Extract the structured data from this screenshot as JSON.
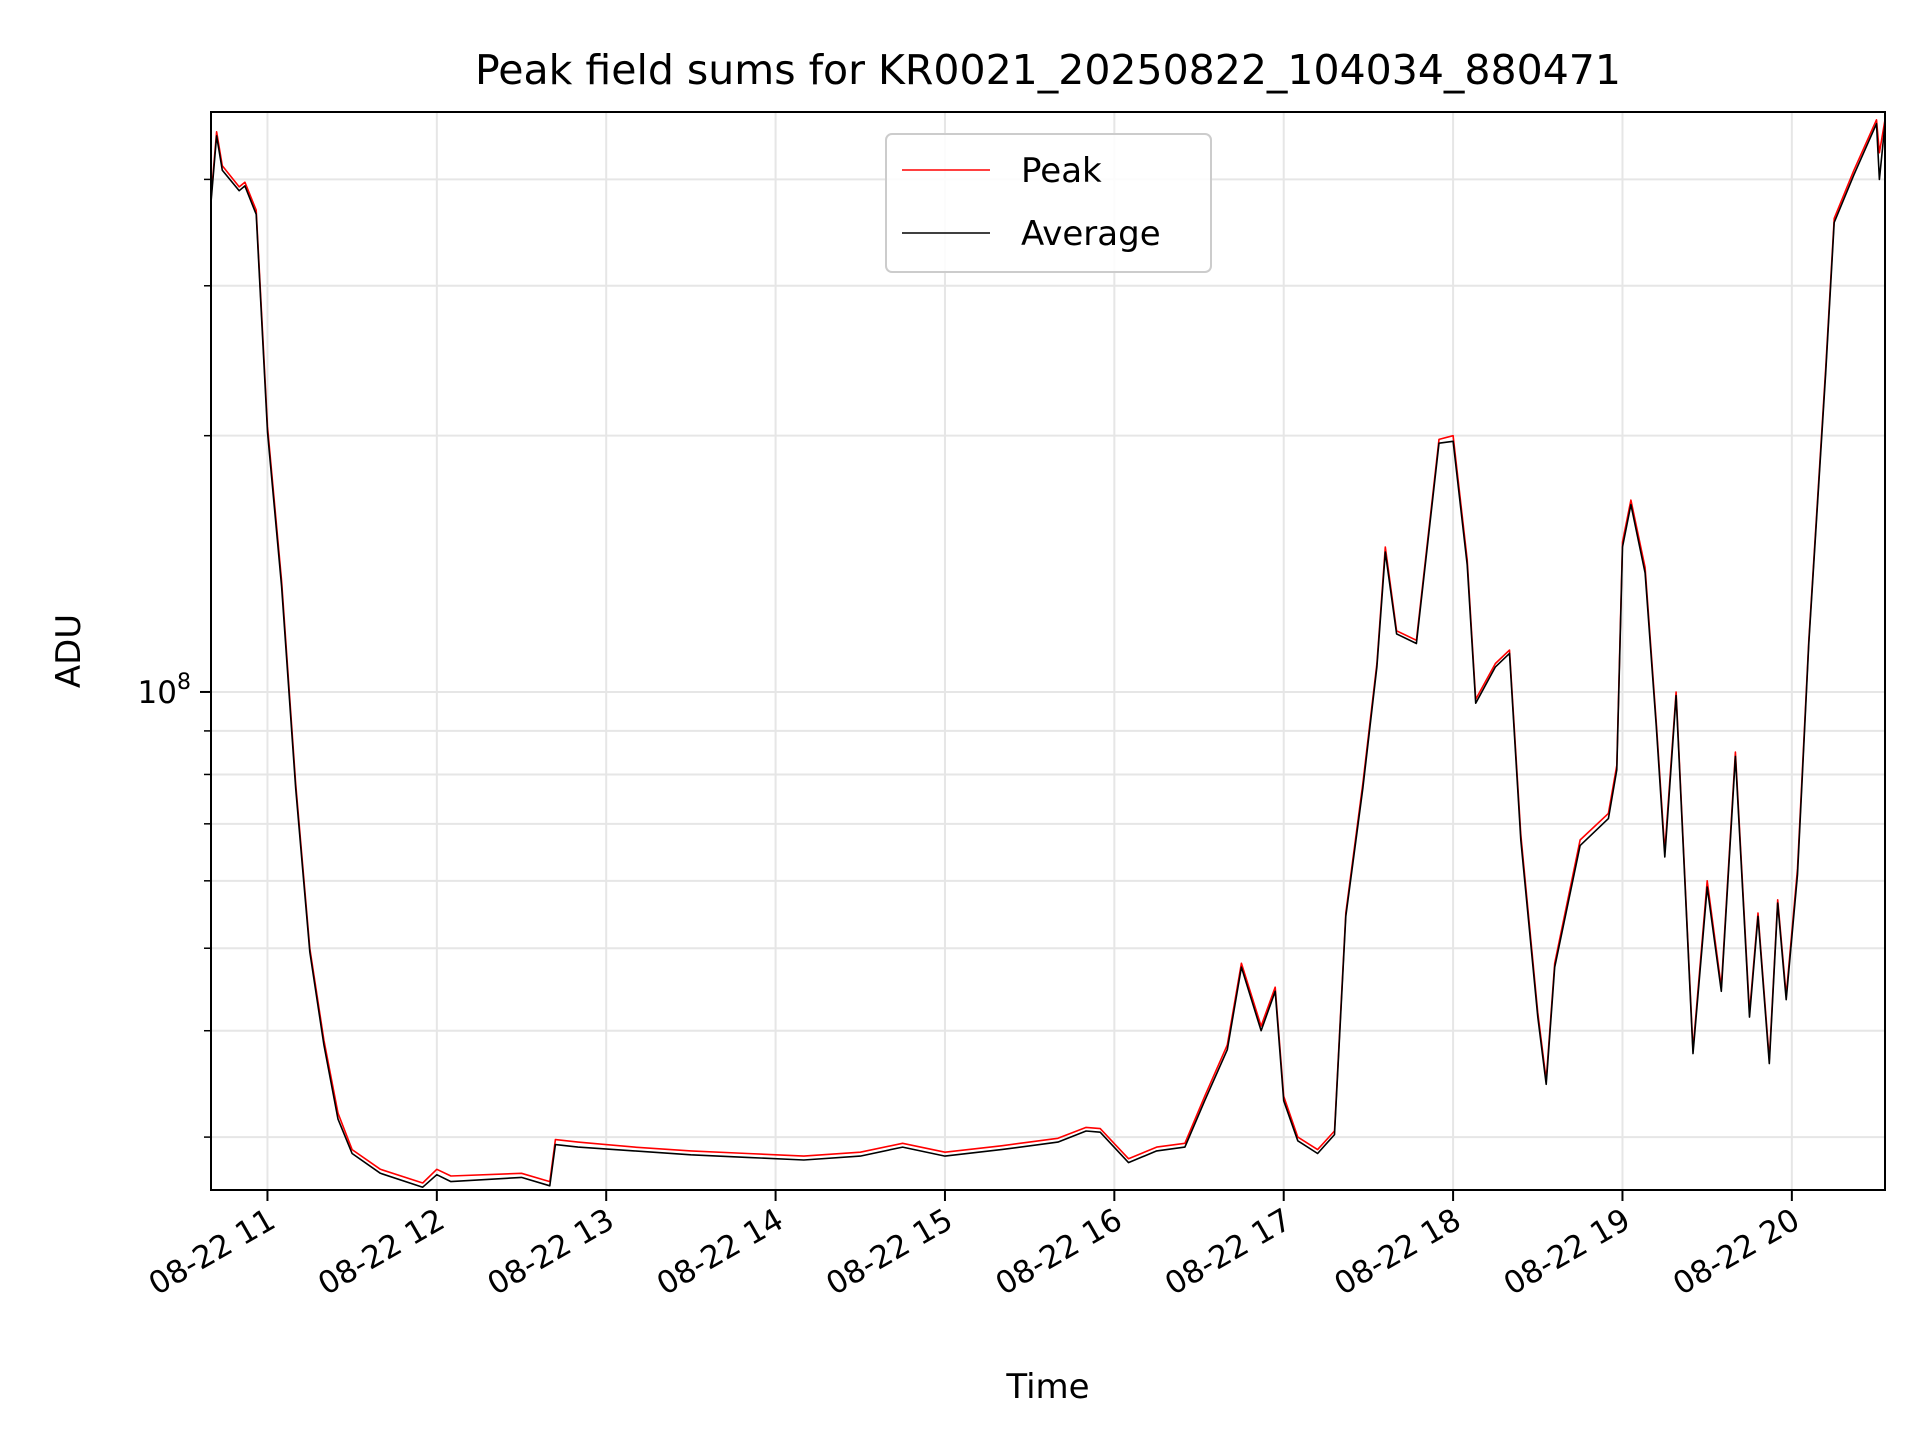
{
  "chart_data": {
    "type": "line",
    "title": "Peak field sums for KR0021_20250822_104034_880471",
    "xlabel": "Time",
    "ylabel": "ADU",
    "x_axis": {
      "kind": "datetime",
      "range": [
        "2025-08-22 10:40",
        "2025-08-22 20:33"
      ],
      "ticks": [
        {
          "value": "2025-08-22 11:00",
          "label": "08-22 11"
        },
        {
          "value": "2025-08-22 12:00",
          "label": "08-22 12"
        },
        {
          "value": "2025-08-22 13:00",
          "label": "08-22 13"
        },
        {
          "value": "2025-08-22 14:00",
          "label": "08-22 14"
        },
        {
          "value": "2025-08-22 15:00",
          "label": "08-22 15"
        },
        {
          "value": "2025-08-22 16:00",
          "label": "08-22 16"
        },
        {
          "value": "2025-08-22 17:00",
          "label": "08-22 17"
        },
        {
          "value": "2025-08-22 18:00",
          "label": "08-22 18"
        },
        {
          "value": "2025-08-22 19:00",
          "label": "08-22 19"
        },
        {
          "value": "2025-08-22 20:00",
          "label": "08-22 20"
        }
      ]
    },
    "y_axis": {
      "scale": "log",
      "range": [
        26000000,
        480000000
      ],
      "major_ticks": [
        {
          "value": 100000000,
          "base": "10",
          "exponent": "8"
        }
      ],
      "minor_ticks": [
        30000000,
        40000000,
        50000000,
        60000000,
        70000000,
        80000000,
        90000000,
        200000000,
        300000000,
        400000000
      ]
    },
    "grid": true,
    "legend_position": "top-center",
    "colors": {
      "Peak": "#ff0000",
      "Average": "#000000"
    },
    "series": [
      {
        "name": "Peak",
        "color": "#ff0000",
        "points": [
          [
            "2025-08-22 10:40",
            380000000
          ],
          [
            "2025-08-22 10:42",
            455000000
          ],
          [
            "2025-08-22 10:44",
            415000000
          ],
          [
            "2025-08-22 10:50",
            392000000
          ],
          [
            "2025-08-22 10:52",
            397000000
          ],
          [
            "2025-08-22 10:56",
            368000000
          ],
          [
            "2025-08-22 11:00",
            205000000
          ],
          [
            "2025-08-22 11:05",
            135000000
          ],
          [
            "2025-08-22 11:10",
            78000000
          ],
          [
            "2025-08-22 11:15",
            50000000
          ],
          [
            "2025-08-22 11:20",
            39000000
          ],
          [
            "2025-08-22 11:25",
            32000000
          ],
          [
            "2025-08-22 11:30",
            29000000
          ],
          [
            "2025-08-22 11:40",
            27500000
          ],
          [
            "2025-08-22 11:55",
            26500000
          ],
          [
            "2025-08-22 12:00",
            27500000
          ],
          [
            "2025-08-22 12:05",
            27000000
          ],
          [
            "2025-08-22 12:30",
            27200000
          ],
          [
            "2025-08-22 12:40",
            26600000
          ],
          [
            "2025-08-22 12:42",
            29800000
          ],
          [
            "2025-08-22 12:50",
            29600000
          ],
          [
            "2025-08-22 13:10",
            29200000
          ],
          [
            "2025-08-22 13:30",
            28900000
          ],
          [
            "2025-08-22 13:50",
            28700000
          ],
          [
            "2025-08-22 14:10",
            28500000
          ],
          [
            "2025-08-22 14:30",
            28800000
          ],
          [
            "2025-08-22 14:45",
            29500000
          ],
          [
            "2025-08-22 15:00",
            28800000
          ],
          [
            "2025-08-22 15:20",
            29300000
          ],
          [
            "2025-08-22 15:40",
            29900000
          ],
          [
            "2025-08-22 15:50",
            30800000
          ],
          [
            "2025-08-22 15:55",
            30700000
          ],
          [
            "2025-08-22 16:05",
            28300000
          ],
          [
            "2025-08-22 16:15",
            29200000
          ],
          [
            "2025-08-22 16:25",
            29500000
          ],
          [
            "2025-08-22 16:32",
            33500000
          ],
          [
            "2025-08-22 16:40",
            38500000
          ],
          [
            "2025-08-22 16:45",
            48000000
          ],
          [
            "2025-08-22 16:52",
            40500000
          ],
          [
            "2025-08-22 16:57",
            45000000
          ],
          [
            "2025-08-22 17:00",
            33500000
          ],
          [
            "2025-08-22 17:05",
            30000000
          ],
          [
            "2025-08-22 17:12",
            29000000
          ],
          [
            "2025-08-22 17:18",
            30500000
          ],
          [
            "2025-08-22 17:22",
            55000000
          ],
          [
            "2025-08-22 17:28",
            78000000
          ],
          [
            "2025-08-22 17:33",
            108000000
          ],
          [
            "2025-08-22 17:36",
            148000000
          ],
          [
            "2025-08-22 17:40",
            118000000
          ],
          [
            "2025-08-22 17:47",
            115000000
          ],
          [
            "2025-08-22 17:55",
            198000000
          ],
          [
            "2025-08-22 18:00",
            200000000
          ],
          [
            "2025-08-22 18:05",
            143000000
          ],
          [
            "2025-08-22 18:08",
            98000000
          ],
          [
            "2025-08-22 18:15",
            108000000
          ],
          [
            "2025-08-22 18:20",
            112000000
          ],
          [
            "2025-08-22 18:24",
            68000000
          ],
          [
            "2025-08-22 18:30",
            42000000
          ],
          [
            "2025-08-22 18:33",
            35000000
          ],
          [
            "2025-08-22 18:36",
            48000000
          ],
          [
            "2025-08-22 18:45",
            67000000
          ],
          [
            "2025-08-22 18:55",
            72000000
          ],
          [
            "2025-08-22 18:58",
            82000000
          ],
          [
            "2025-08-22 19:00",
            150000000
          ],
          [
            "2025-08-22 19:03",
            168000000
          ],
          [
            "2025-08-22 19:08",
            140000000
          ],
          [
            "2025-08-22 19:12",
            92000000
          ],
          [
            "2025-08-22 19:15",
            65000000
          ],
          [
            "2025-08-22 19:19",
            100000000
          ],
          [
            "2025-08-22 19:25",
            38000000
          ],
          [
            "2025-08-22 19:30",
            60000000
          ],
          [
            "2025-08-22 19:35",
            45000000
          ],
          [
            "2025-08-22 19:40",
            85000000
          ],
          [
            "2025-08-22 19:45",
            42000000
          ],
          [
            "2025-08-22 19:48",
            55000000
          ],
          [
            "2025-08-22 19:52",
            37000000
          ],
          [
            "2025-08-22 19:55",
            57000000
          ],
          [
            "2025-08-22 19:58",
            44000000
          ],
          [
            "2025-08-22 20:02",
            62000000
          ],
          [
            "2025-08-22 20:06",
            115000000
          ],
          [
            "2025-08-22 20:12",
            240000000
          ],
          [
            "2025-08-22 20:15",
            360000000
          ],
          [
            "2025-08-22 20:22",
            410000000
          ],
          [
            "2025-08-22 20:30",
            470000000
          ],
          [
            "2025-08-22 20:31",
            430000000
          ],
          [
            "2025-08-22 20:33",
            470000000
          ]
        ]
      },
      {
        "name": "Average",
        "color": "#000000",
        "points": [
          [
            "2025-08-22 10:40",
            376000000
          ],
          [
            "2025-08-22 10:42",
            450000000
          ],
          [
            "2025-08-22 10:44",
            410000000
          ],
          [
            "2025-08-22 10:50",
            388000000
          ],
          [
            "2025-08-22 10:52",
            393000000
          ],
          [
            "2025-08-22 10:56",
            364000000
          ],
          [
            "2025-08-22 11:00",
            202000000
          ],
          [
            "2025-08-22 11:05",
            133000000
          ],
          [
            "2025-08-22 11:10",
            77000000
          ],
          [
            "2025-08-22 11:15",
            49500000
          ],
          [
            "2025-08-22 11:20",
            38500000
          ],
          [
            "2025-08-22 11:25",
            31500000
          ],
          [
            "2025-08-22 11:30",
            28700000
          ],
          [
            "2025-08-22 11:40",
            27200000
          ],
          [
            "2025-08-22 11:55",
            26200000
          ],
          [
            "2025-08-22 12:00",
            27100000
          ],
          [
            "2025-08-22 12:05",
            26600000
          ],
          [
            "2025-08-22 12:30",
            26900000
          ],
          [
            "2025-08-22 12:40",
            26300000
          ],
          [
            "2025-08-22 12:42",
            29400000
          ],
          [
            "2025-08-22 12:50",
            29200000
          ],
          [
            "2025-08-22 13:10",
            28900000
          ],
          [
            "2025-08-22 13:30",
            28600000
          ],
          [
            "2025-08-22 13:50",
            28400000
          ],
          [
            "2025-08-22 14:10",
            28200000
          ],
          [
            "2025-08-22 14:30",
            28500000
          ],
          [
            "2025-08-22 14:45",
            29200000
          ],
          [
            "2025-08-22 15:00",
            28500000
          ],
          [
            "2025-08-22 15:20",
            29000000
          ],
          [
            "2025-08-22 15:40",
            29600000
          ],
          [
            "2025-08-22 15:50",
            30500000
          ],
          [
            "2025-08-22 15:55",
            30400000
          ],
          [
            "2025-08-22 16:05",
            28000000
          ],
          [
            "2025-08-22 16:15",
            28900000
          ],
          [
            "2025-08-22 16:25",
            29200000
          ],
          [
            "2025-08-22 16:32",
            33100000
          ],
          [
            "2025-08-22 16:40",
            38000000
          ],
          [
            "2025-08-22 16:45",
            47500000
          ],
          [
            "2025-08-22 16:52",
            40000000
          ],
          [
            "2025-08-22 16:57",
            44500000
          ],
          [
            "2025-08-22 17:00",
            33100000
          ],
          [
            "2025-08-22 17:05",
            29700000
          ],
          [
            "2025-08-22 17:12",
            28700000
          ],
          [
            "2025-08-22 17:18",
            30200000
          ],
          [
            "2025-08-22 17:22",
            54500000
          ],
          [
            "2025-08-22 17:28",
            77000000
          ],
          [
            "2025-08-22 17:33",
            107000000
          ],
          [
            "2025-08-22 17:36",
            146000000
          ],
          [
            "2025-08-22 17:40",
            117000000
          ],
          [
            "2025-08-22 17:47",
            114000000
          ],
          [
            "2025-08-22 17:55",
            196000000
          ],
          [
            "2025-08-22 18:00",
            197000000
          ],
          [
            "2025-08-22 18:05",
            141000000
          ],
          [
            "2025-08-22 18:08",
            97000000
          ],
          [
            "2025-08-22 18:15",
            107000000
          ],
          [
            "2025-08-22 18:20",
            111000000
          ],
          [
            "2025-08-22 18:24",
            67000000
          ],
          [
            "2025-08-22 18:30",
            41500000
          ],
          [
            "2025-08-22 18:33",
            34600000
          ],
          [
            "2025-08-22 18:36",
            47500000
          ],
          [
            "2025-08-22 18:45",
            66000000
          ],
          [
            "2025-08-22 18:55",
            71000000
          ],
          [
            "2025-08-22 18:58",
            81000000
          ],
          [
            "2025-08-22 19:00",
            148000000
          ],
          [
            "2025-08-22 19:03",
            166000000
          ],
          [
            "2025-08-22 19:08",
            138000000
          ],
          [
            "2025-08-22 19:12",
            91000000
          ],
          [
            "2025-08-22 19:15",
            64000000
          ],
          [
            "2025-08-22 19:19",
            99000000
          ],
          [
            "2025-08-22 19:25",
            37600000
          ],
          [
            "2025-08-22 19:30",
            59000000
          ],
          [
            "2025-08-22 19:35",
            44500000
          ],
          [
            "2025-08-22 19:40",
            84000000
          ],
          [
            "2025-08-22 19:45",
            41500000
          ],
          [
            "2025-08-22 19:48",
            54500000
          ],
          [
            "2025-08-22 19:52",
            36600000
          ],
          [
            "2025-08-22 19:55",
            56500000
          ],
          [
            "2025-08-22 19:58",
            43500000
          ],
          [
            "2025-08-22 20:02",
            61000000
          ],
          [
            "2025-08-22 20:06",
            114000000
          ],
          [
            "2025-08-22 20:12",
            237000000
          ],
          [
            "2025-08-22 20:15",
            356000000
          ],
          [
            "2025-08-22 20:22",
            405000000
          ],
          [
            "2025-08-22 20:30",
            465000000
          ],
          [
            "2025-08-22 20:31",
            400000000
          ],
          [
            "2025-08-22 20:33",
            465000000
          ]
        ]
      }
    ]
  }
}
